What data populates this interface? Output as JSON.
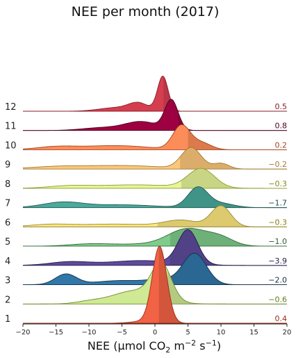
{
  "chart_data": {
    "type": "ridgeline",
    "title": "NEE per month (2017)",
    "xlabel_parts": {
      "pre": "NEE (µmol CO",
      "sub": "2",
      "mid1": " m",
      "sup1": "−2",
      "mid2": " s",
      "sup2": "−1",
      "post": ")"
    },
    "xlim": [
      -20,
      20
    ],
    "xticks": [
      "−20",
      "−15",
      "−10",
      "−5",
      "0",
      "5",
      "10",
      "15",
      "20"
    ],
    "series": [
      {
        "month": "12",
        "mean": "0.5",
        "color": "#d53e4f",
        "edge": "#8a1c2a",
        "label_color": "#8a1c2a",
        "split": 1.3,
        "peaks": [
          [
            1.2,
            0.8,
            1.0
          ],
          [
            -2.5,
            1.5,
            0.22
          ],
          [
            -6.0,
            2.5,
            0.1
          ]
        ]
      },
      {
        "month": "11",
        "mean": "0.8",
        "color": "#9e0142",
        "edge": "#4a001c",
        "label_color": "#4a001c",
        "split": 3.5,
        "peaks": [
          [
            2.5,
            1.0,
            0.85
          ],
          [
            -2.0,
            2.5,
            0.25
          ],
          [
            -8.0,
            3.0,
            0.08
          ]
        ]
      },
      {
        "month": "10",
        "mean": "0.2",
        "color": "#fc8d59",
        "edge": "#a5431c",
        "label_color": "#a5431c",
        "split": 5.0,
        "peaks": [
          [
            4.0,
            1.3,
            0.68
          ],
          [
            7.0,
            1.5,
            0.2
          ],
          [
            -6.0,
            5.0,
            0.12
          ],
          [
            -15.0,
            3.0,
            0.08
          ]
        ]
      },
      {
        "month": "9",
        "mean": "−0.2",
        "color": "#fdc77a",
        "edge": "#a07a32",
        "label_color": "#a07a32",
        "split": 3.8,
        "peaks": [
          [
            5.5,
            1.5,
            0.6
          ],
          [
            10.0,
            1.2,
            0.16
          ],
          [
            -5.0,
            6.0,
            0.1
          ],
          [
            -15.0,
            4.0,
            0.06
          ]
        ]
      },
      {
        "month": "8",
        "mean": "−0.3",
        "color": "#e6f598",
        "edge": "#8f9a2c",
        "label_color": "#7f8a1c",
        "split": 4.0,
        "peaks": [
          [
            7.0,
            2.0,
            0.55
          ],
          [
            -3.0,
            6.0,
            0.1
          ],
          [
            -13.0,
            3.0,
            0.06
          ]
        ]
      },
      {
        "month": "7",
        "mean": "−1.7",
        "color": "#4aaa9c",
        "edge": "#1f5a50",
        "label_color": "#1f4a42",
        "split": 2.3,
        "peaks": [
          [
            6.5,
            1.5,
            0.57
          ],
          [
            10.0,
            2.0,
            0.12
          ],
          [
            -14.0,
            3.0,
            0.15
          ],
          [
            -5.0,
            5.0,
            0.08
          ]
        ]
      },
      {
        "month": "6",
        "mean": "−0.3",
        "color": "#fee77f",
        "edge": "#9a8832",
        "label_color": "#8a7a10",
        "split": 0.4,
        "peaks": [
          [
            10.0,
            1.5,
            0.6
          ],
          [
            4.0,
            2.5,
            0.18
          ],
          [
            -6.0,
            6.0,
            0.08
          ],
          [
            -16.0,
            3.0,
            0.06
          ]
        ]
      },
      {
        "month": "5",
        "mean": "−1.0",
        "color": "#7fcc8a",
        "edge": "#2f6a3a",
        "label_color": "#2f5a32",
        "split": 2.3,
        "peaks": [
          [
            5.0,
            3.0,
            0.5
          ],
          [
            10.0,
            2.0,
            0.2
          ],
          [
            -10.0,
            3.0,
            0.06
          ],
          [
            -3.0,
            4.0,
            0.05
          ]
        ]
      },
      {
        "month": "4",
        "mean": "−3.9",
        "color": "#5e4b9c",
        "edge": "#231a4a",
        "label_color": "#231a4a",
        "split": 2.3,
        "peaks": [
          [
            5.0,
            1.5,
            0.98
          ],
          [
            -2.0,
            5.0,
            0.14
          ],
          [
            -13.0,
            3.0,
            0.1
          ]
        ]
      },
      {
        "month": "3",
        "mean": "−2.0",
        "color": "#3177a9",
        "edge": "#12324a",
        "label_color": "#12324a",
        "split": 2.0,
        "peaks": [
          [
            6.0,
            1.8,
            0.9
          ],
          [
            -13.5,
            1.6,
            0.3
          ],
          [
            -5.0,
            4.0,
            0.12
          ],
          [
            1.0,
            2.0,
            0.12
          ]
        ]
      },
      {
        "month": "2",
        "mean": "−0.6",
        "color": "#cfe994",
        "edge": "#6f8a2c",
        "label_color": "#5f7a1c",
        "split": 1.9,
        "peaks": [
          [
            1.0,
            1.5,
            1.0
          ],
          [
            -3.0,
            3.5,
            0.38
          ],
          [
            -10.0,
            2.0,
            0.06
          ]
        ]
      },
      {
        "month": "1",
        "mean": "0.4",
        "color": "#f26245",
        "edge": "#9a2c18",
        "label_color": "#9a2c18",
        "split": 0.6,
        "peaks": [
          [
            0.7,
            1.1,
            2.2
          ],
          [
            -2.0,
            1.8,
            0.05
          ]
        ]
      }
    ]
  }
}
